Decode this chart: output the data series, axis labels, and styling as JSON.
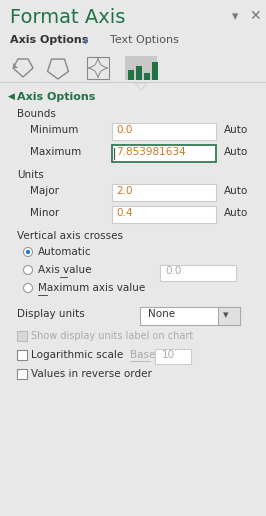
{
  "title": "Format Axis",
  "tab1": "Axis Options",
  "tab2": "Text Options",
  "section_title": "Axis Options",
  "bounds_label": "Bounds",
  "minimum_label": "Minimum",
  "minimum_value": "0.0",
  "maximum_label": "Maximum",
  "maximum_value": "7.853981634",
  "units_label": "Units",
  "major_label": "Major",
  "major_value": "2.0",
  "minor_label": "Minor",
  "minor_value": "0.4",
  "auto_label": "Auto",
  "vac_label": "Vertical axis crosses",
  "radio1": "Automatic",
  "radio2": "Axis value",
  "radio2_val": "0.0",
  "radio3": "Maximum axis value",
  "display_units_label": "Display units",
  "display_units_val": "None",
  "show_label": "Show display units label on chart",
  "log_label": "Logarithmic scale",
  "base_label": "Base",
  "base_val": "10",
  "reverse_label": "Values in reverse order",
  "bg_color": "#E8E8E8",
  "title_color": "#217346",
  "section_color": "#217346",
  "input_border_active": "#217346",
  "text_color": "#333333",
  "disabled_text_color": "#AAAAAA",
  "value_color": "#CC7722",
  "tab_arrow_color": "#4472C4"
}
